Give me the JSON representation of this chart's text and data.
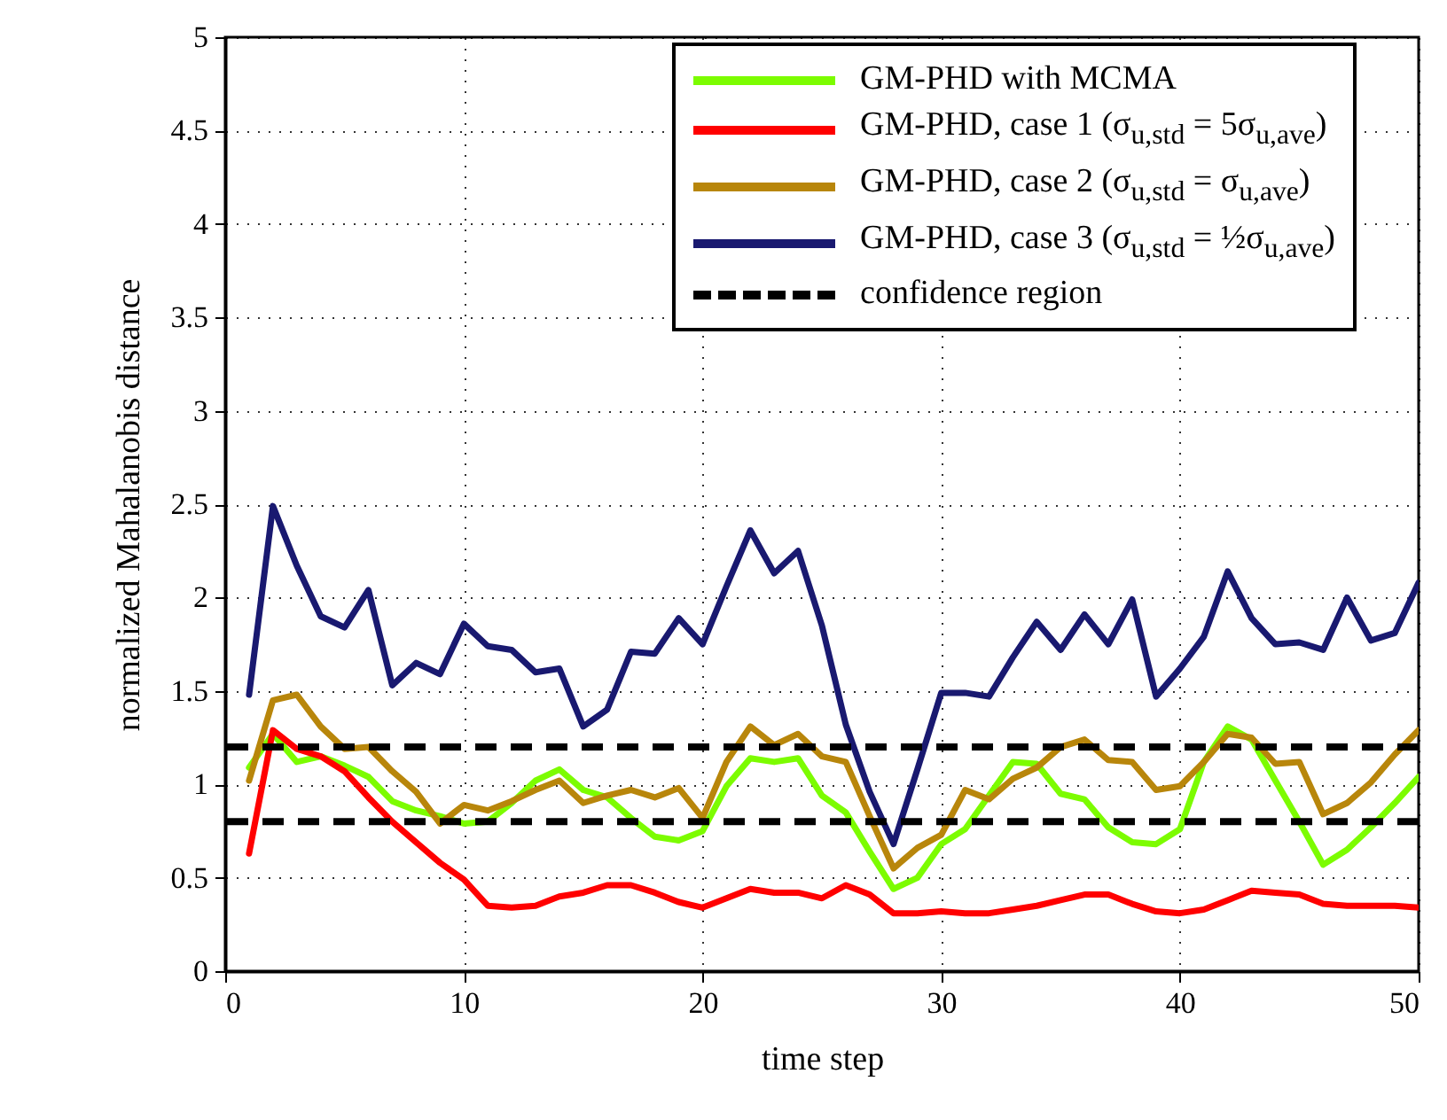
{
  "chart_data": {
    "type": "line",
    "xlabel": "time step",
    "ylabel": "normalized Mahalanobis distance",
    "x": [
      1,
      2,
      3,
      4,
      5,
      6,
      7,
      8,
      9,
      10,
      11,
      12,
      13,
      14,
      15,
      16,
      17,
      18,
      19,
      20,
      21,
      22,
      23,
      24,
      25,
      26,
      27,
      28,
      29,
      30,
      31,
      32,
      33,
      34,
      35,
      36,
      37,
      38,
      39,
      40,
      41,
      42,
      43,
      44,
      45,
      46,
      47,
      48,
      49,
      50
    ],
    "series": [
      {
        "name": "GM-PHD with MCMA",
        "color": "#7cfc00",
        "values": [
          1.09,
          1.27,
          1.12,
          1.15,
          1.1,
          1.04,
          0.91,
          0.86,
          0.83,
          0.79,
          0.8,
          0.9,
          1.02,
          1.08,
          0.97,
          0.93,
          0.82,
          0.72,
          0.7,
          0.75,
          0.99,
          1.14,
          1.12,
          1.14,
          0.94,
          0.85,
          0.64,
          0.44,
          0.5,
          0.68,
          0.76,
          0.94,
          1.12,
          1.11,
          0.95,
          0.92,
          0.77,
          0.69,
          0.68,
          0.76,
          1.12,
          1.31,
          1.24,
          1.02,
          0.8,
          0.57,
          0.65,
          0.77,
          0.9,
          1.04
        ]
      },
      {
        "name": "GM-PHD, case 1 (σ$_{u,std}$ = 5σ$_{u,ave}$)",
        "color": "#ff0000",
        "values": [
          0.63,
          1.29,
          1.19,
          1.15,
          1.07,
          0.93,
          0.8,
          0.69,
          0.58,
          0.49,
          0.35,
          0.34,
          0.35,
          0.4,
          0.42,
          0.46,
          0.46,
          0.42,
          0.37,
          0.34,
          0.39,
          0.44,
          0.42,
          0.42,
          0.39,
          0.46,
          0.41,
          0.31,
          0.31,
          0.32,
          0.31,
          0.31,
          0.33,
          0.35,
          0.38,
          0.41,
          0.41,
          0.36,
          0.32,
          0.31,
          0.33,
          0.38,
          0.43,
          0.42,
          0.41,
          0.36,
          0.35,
          0.35,
          0.35,
          0.34
        ]
      },
      {
        "name": "GM-PHD, case 2 (σ$_{u,std}$ = σ$_{u,ave}$)",
        "color": "#b8860b",
        "values": [
          1.02,
          1.45,
          1.48,
          1.31,
          1.19,
          1.2,
          1.07,
          0.96,
          0.79,
          0.89,
          0.86,
          0.91,
          0.97,
          1.02,
          0.9,
          0.94,
          0.97,
          0.93,
          0.98,
          0.82,
          1.12,
          1.31,
          1.21,
          1.27,
          1.15,
          1.12,
          0.83,
          0.55,
          0.66,
          0.73,
          0.97,
          0.92,
          1.03,
          1.09,
          1.2,
          1.24,
          1.13,
          1.12,
          0.97,
          0.99,
          1.12,
          1.27,
          1.25,
          1.11,
          1.12,
          0.84,
          0.9,
          1.01,
          1.16,
          1.29
        ]
      },
      {
        "name": "GM-PHD, case 3 (σ$_{u,std}$ = ½σ$_{u,ave}$)",
        "color": "#191970",
        "values": [
          1.48,
          2.49,
          2.17,
          1.9,
          1.84,
          2.04,
          1.53,
          1.65,
          1.59,
          1.86,
          1.74,
          1.72,
          1.6,
          1.62,
          1.31,
          1.4,
          1.71,
          1.7,
          1.89,
          1.75,
          2.06,
          2.36,
          2.13,
          2.25,
          1.85,
          1.32,
          0.96,
          0.68,
          1.08,
          1.49,
          1.49,
          1.47,
          1.68,
          1.87,
          1.72,
          1.91,
          1.75,
          1.99,
          1.47,
          1.62,
          1.79,
          2.14,
          1.89,
          1.75,
          1.76,
          1.72,
          2.0,
          1.77,
          1.81,
          2.08
        ]
      }
    ],
    "ref_lines": [
      {
        "axis": "y",
        "value": 1.2,
        "label": "confidence region",
        "color": "#000000",
        "line_style": "dashed"
      },
      {
        "axis": "y",
        "value": 0.8,
        "color": "#000000",
        "line_style": "dashed"
      }
    ],
    "xlim": [
      0,
      50
    ],
    "xticks": [
      0,
      10,
      20,
      30,
      40,
      50
    ],
    "ylim": [
      0,
      5
    ],
    "yticks": [
      0,
      0.5,
      1,
      1.5,
      2,
      2.5,
      3,
      3.5,
      4,
      4.5,
      5
    ],
    "grid": true,
    "legend": "top right",
    "marker": "none",
    "line_style": "solid"
  }
}
